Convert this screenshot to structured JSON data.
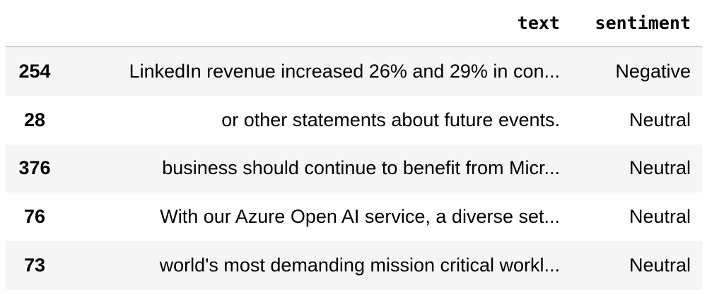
{
  "table": {
    "columns": [
      "text",
      "sentiment"
    ],
    "rows": [
      {
        "index": 254,
        "text": "LinkedIn revenue increased 26% and 29% in con...",
        "sentiment": "Negative"
      },
      {
        "index": 28,
        "text": "or other statements about future events.",
        "sentiment": "Neutral"
      },
      {
        "index": 376,
        "text": "business should continue to benefit from Micr...",
        "sentiment": "Neutral"
      },
      {
        "index": 76,
        "text": "With our Azure Open AI service, a diverse set...",
        "sentiment": "Neutral"
      },
      {
        "index": 73,
        "text": "world's most demanding mission critical workl...",
        "sentiment": "Neutral"
      }
    ]
  }
}
